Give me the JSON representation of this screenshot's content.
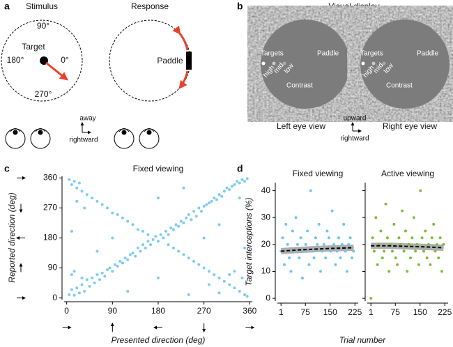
{
  "panels": {
    "a": {
      "letter": "a",
      "stimulus": "Stimulus",
      "response": "Response",
      "up": "90°",
      "left": "180°",
      "right": "0°",
      "down": "270°",
      "target": "Target",
      "paddle": "Paddle",
      "away": "away",
      "rightward": "rightward"
    },
    "b": {
      "letter": "b",
      "title": "Visual display",
      "targets": "Targets",
      "paddle": "Paddle",
      "high": "high",
      "mid": "mid",
      "low": "low",
      "contrast": "Contrast",
      "left_eye": "Left eye view",
      "right_eye": "Right eye view",
      "upward": "upward",
      "rightward": "rightward"
    },
    "c": {
      "letter": "c"
    },
    "d": {
      "letter": "d"
    }
  },
  "chart_data": [
    {
      "type": "scatter",
      "title": "Fixed viewing",
      "x_label": "Presented direction (deg)",
      "y_label": "Reported direction (deg)",
      "xlim": [
        -5,
        365
      ],
      "ylim": [
        -5,
        365
      ],
      "xticks": [
        0,
        90,
        180,
        270,
        360
      ],
      "yticks": [
        0,
        90,
        180,
        270,
        360
      ],
      "color": "#7fcbf0",
      "x": [
        5,
        10,
        15,
        20,
        25,
        30,
        35,
        40,
        45,
        50,
        55,
        60,
        65,
        70,
        75,
        80,
        85,
        90,
        95,
        100,
        105,
        110,
        115,
        120,
        125,
        130,
        135,
        140,
        145,
        150,
        155,
        160,
        165,
        170,
        175,
        180,
        185,
        190,
        195,
        200,
        205,
        210,
        215,
        220,
        225,
        230,
        235,
        240,
        245,
        250,
        255,
        260,
        265,
        270,
        275,
        280,
        285,
        290,
        295,
        300,
        305,
        310,
        315,
        320,
        325,
        330,
        335,
        340,
        345,
        350,
        355,
        5,
        10,
        15,
        20,
        25,
        30,
        40,
        50,
        60,
        70,
        80,
        90,
        100,
        110,
        120,
        130,
        140,
        150,
        160,
        200,
        210,
        220,
        230,
        240,
        250,
        260,
        270,
        280,
        290,
        300,
        310,
        320,
        330,
        340,
        350,
        355,
        15,
        30,
        10,
        330,
        345,
        320,
        20,
        35,
        300,
        280,
        340,
        10,
        350,
        180,
        180,
        90,
        270,
        60,
        300,
        230,
        120,
        240
      ],
      "values": [
        10,
        25,
        8,
        30,
        15,
        40,
        20,
        55,
        35,
        60,
        45,
        70,
        55,
        75,
        65,
        85,
        90,
        80,
        100,
        95,
        110,
        105,
        120,
        115,
        130,
        135,
        125,
        150,
        140,
        160,
        150,
        170,
        160,
        175,
        185,
        170,
        190,
        180,
        200,
        190,
        210,
        205,
        220,
        215,
        230,
        225,
        240,
        250,
        235,
        260,
        245,
        270,
        260,
        275,
        280,
        285,
        290,
        300,
        295,
        310,
        305,
        320,
        330,
        325,
        335,
        340,
        350,
        345,
        355,
        350,
        358,
        355,
        340,
        350,
        330,
        345,
        320,
        310,
        300,
        290,
        280,
        270,
        255,
        250,
        240,
        230,
        220,
        205,
        200,
        190,
        160,
        150,
        140,
        130,
        120,
        110,
        100,
        90,
        80,
        70,
        60,
        50,
        40,
        30,
        20,
        10,
        5,
        80,
        60,
        70,
        80,
        60,
        70,
        290,
        270,
        15,
        40,
        300,
        200,
        150,
        60,
        300,
        180,
        180,
        140,
        220,
        330,
        20,
        10
      ]
    },
    {
      "type": "scatter",
      "title": "Fixed viewing",
      "x_label": "Trial number",
      "y_label": "Target interceptions (%)",
      "xlim": [
        -10,
        235
      ],
      "ylim": [
        -1,
        43
      ],
      "xticks": [
        1,
        75,
        150,
        225
      ],
      "yticks": [
        0,
        10,
        20,
        30,
        40
      ],
      "color": "#6ec6ee",
      "x": [
        1,
        6,
        11,
        16,
        21,
        26,
        31,
        36,
        41,
        46,
        51,
        56,
        61,
        66,
        71,
        76,
        81,
        86,
        91,
        96,
        101,
        106,
        111,
        116,
        121,
        126,
        131,
        136,
        141,
        146,
        151,
        156,
        161,
        166,
        171,
        176,
        181,
        186,
        191,
        196,
        201,
        206,
        211,
        216,
        221
      ],
      "values": [
        17.5,
        22.5,
        12.5,
        27.5,
        20,
        15,
        10,
        25,
        17.5,
        30,
        20,
        15,
        22.5,
        7.5,
        17.5,
        20,
        25,
        12.5,
        40,
        17.5,
        15,
        22.5,
        20,
        27.5,
        10,
        17.5,
        20,
        15,
        25,
        22.5,
        17.5,
        32.5,
        20,
        12.5,
        17.5,
        22.5,
        15,
        20,
        27.5,
        17.5,
        10,
        20,
        22.5,
        15,
        17.5
      ],
      "fit": {
        "x": [
          1,
          56,
          111,
          166,
          221
        ],
        "values": [
          17.5,
          18,
          18.3,
          18.6,
          18.8
        ]
      }
    },
    {
      "type": "scatter",
      "title": "Active viewing",
      "xlim": [
        -10,
        235
      ],
      "ylim": [
        -1,
        43
      ],
      "xticks": [
        1,
        75,
        150,
        225
      ],
      "yticks": [
        0,
        10,
        20,
        30,
        40
      ],
      "color": "#7cbf3b",
      "x": [
        1,
        6,
        11,
        16,
        21,
        26,
        31,
        36,
        41,
        46,
        51,
        56,
        61,
        66,
        71,
        76,
        81,
        86,
        91,
        96,
        101,
        106,
        111,
        116,
        121,
        126,
        131,
        136,
        141,
        146,
        151,
        156,
        161,
        166,
        171,
        176,
        181,
        186,
        191,
        196,
        201,
        206,
        211,
        216,
        221
      ],
      "values": [
        0,
        22.5,
        17.5,
        30,
        12.5,
        20,
        25,
        15,
        17.5,
        35,
        22.5,
        10,
        20,
        17.5,
        27.5,
        15,
        12.5,
        22.5,
        20,
        32.5,
        17.5,
        25,
        10,
        20,
        15,
        22.5,
        30,
        17.5,
        20,
        12.5,
        40,
        22.5,
        17.5,
        25,
        15,
        20,
        12.5,
        22.5,
        27.5,
        17.5,
        20,
        15,
        22.5,
        10,
        20
      ],
      "fit": {
        "x": [
          1,
          56,
          111,
          166,
          221
        ],
        "values": [
          19.5,
          19.5,
          19.3,
          19.1,
          18.8
        ]
      }
    }
  ]
}
